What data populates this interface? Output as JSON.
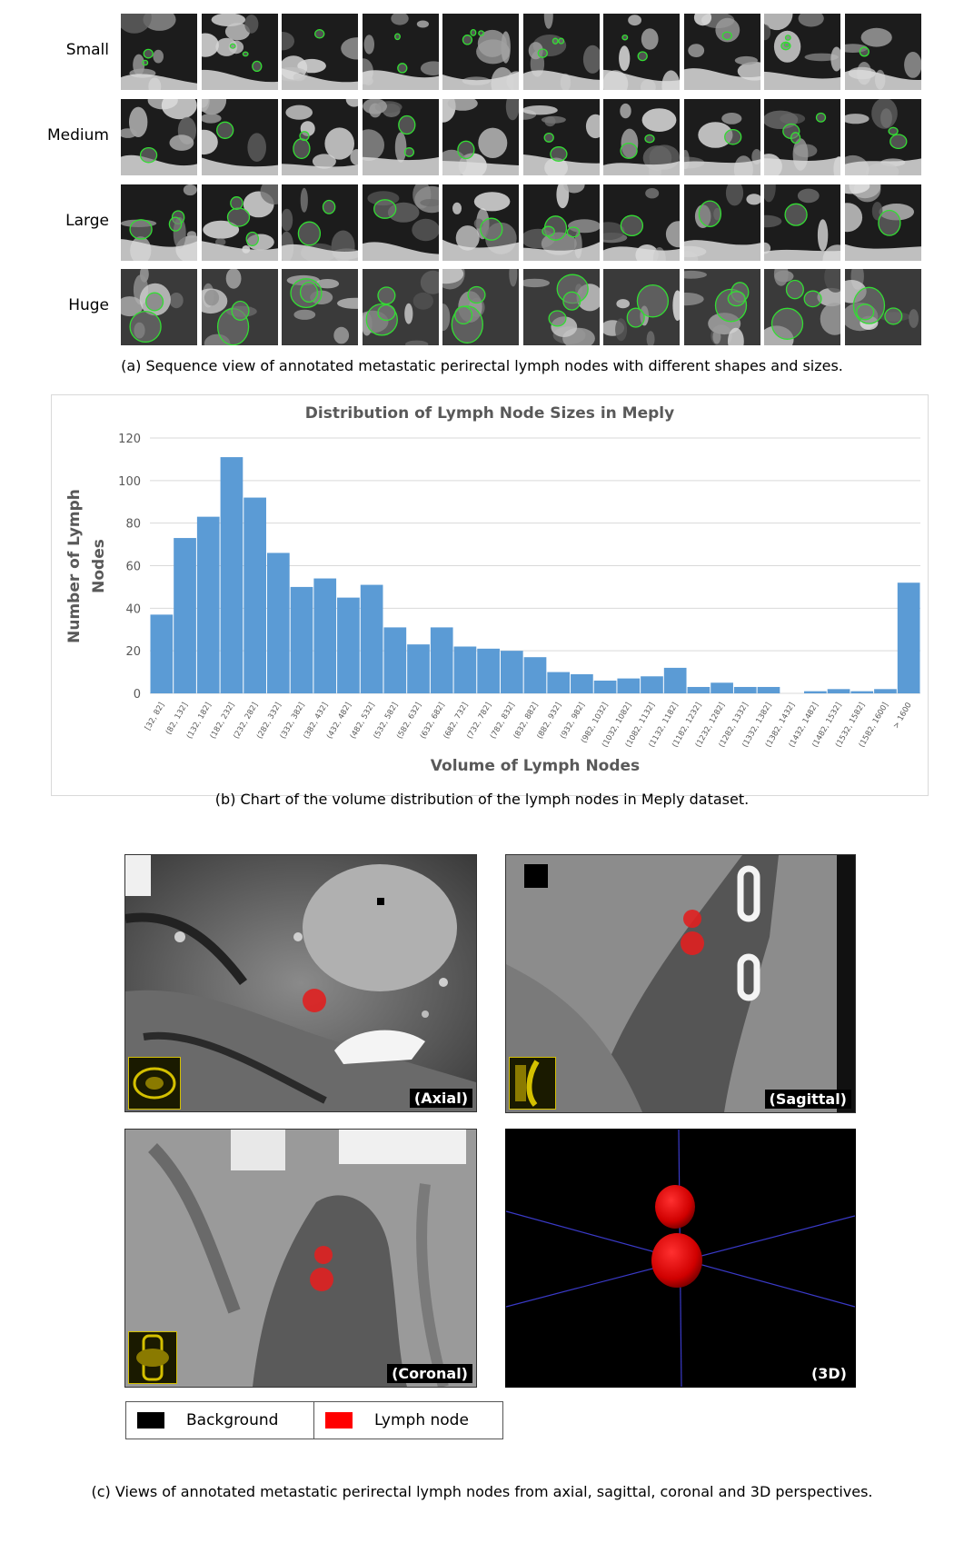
{
  "panel_a": {
    "rows": [
      {
        "label": "Small"
      },
      {
        "label": "Medium"
      },
      {
        "label": "Large"
      },
      {
        "label": "Huge"
      }
    ],
    "caption": "(a) Sequence view of annotated metastatic perirectal lymph nodes with different shapes and sizes.",
    "outline_color": "#33dd33"
  },
  "panel_b": {
    "caption": "(b) Chart of the volume distribution of the lymph nodes in Meply dataset."
  },
  "chart_data": {
    "type": "bar",
    "title": "Distribution of Lymph Node Sizes in Meply",
    "xlabel": "Volume of Lymph Nodes",
    "ylabel": "Number of Lymph Nodes",
    "ylim": [
      0,
      120
    ],
    "yticks": [
      0,
      20,
      40,
      60,
      80,
      100,
      120
    ],
    "grid": true,
    "bar_color": "#5b9bd5",
    "categories": [
      "[32, 82]",
      "(82, 132]",
      "(132, 182]",
      "(182, 232]",
      "(232, 282]",
      "(282, 332]",
      "(332, 382]",
      "(382, 432]",
      "(432, 482]",
      "(482, 532]",
      "(532, 582]",
      "(582, 632]",
      "(632, 682]",
      "(682, 732]",
      "(732, 782]",
      "(782, 832]",
      "(832, 882]",
      "(882, 932]",
      "(932, 982]",
      "(982, 1032]",
      "(1032, 1082]",
      "(1082, 1132]",
      "(1132, 1182]",
      "(1182, 1232]",
      "(1232, 1282]",
      "(1282, 1332]",
      "(1332, 1382]",
      "(1382, 1432]",
      "(1432, 1482]",
      "(1482, 1532]",
      "(1532, 1582]",
      "(1582, 1600]",
      "> 1600"
    ],
    "values": [
      37,
      73,
      83,
      111,
      92,
      66,
      50,
      54,
      45,
      51,
      31,
      23,
      31,
      22,
      21,
      20,
      17,
      10,
      9,
      6,
      7,
      8,
      12,
      3,
      5,
      3,
      3,
      0,
      1,
      2,
      1,
      2,
      52
    ]
  },
  "panel_c": {
    "views": [
      {
        "label": "(Axial)"
      },
      {
        "label": "(Sagittal)"
      },
      {
        "label": "(Coronal)"
      },
      {
        "label": "(3D)"
      }
    ],
    "legend": [
      {
        "label": "Background",
        "color": "#000000"
      },
      {
        "label": "Lymph node",
        "color": "#ff0000"
      }
    ],
    "caption": "(c) Views of annotated metastatic perirectal lymph nodes from axial, sagittal, coronal and 3D perspectives.",
    "node_color": "#e02020",
    "inset_color": "#d4c000"
  }
}
